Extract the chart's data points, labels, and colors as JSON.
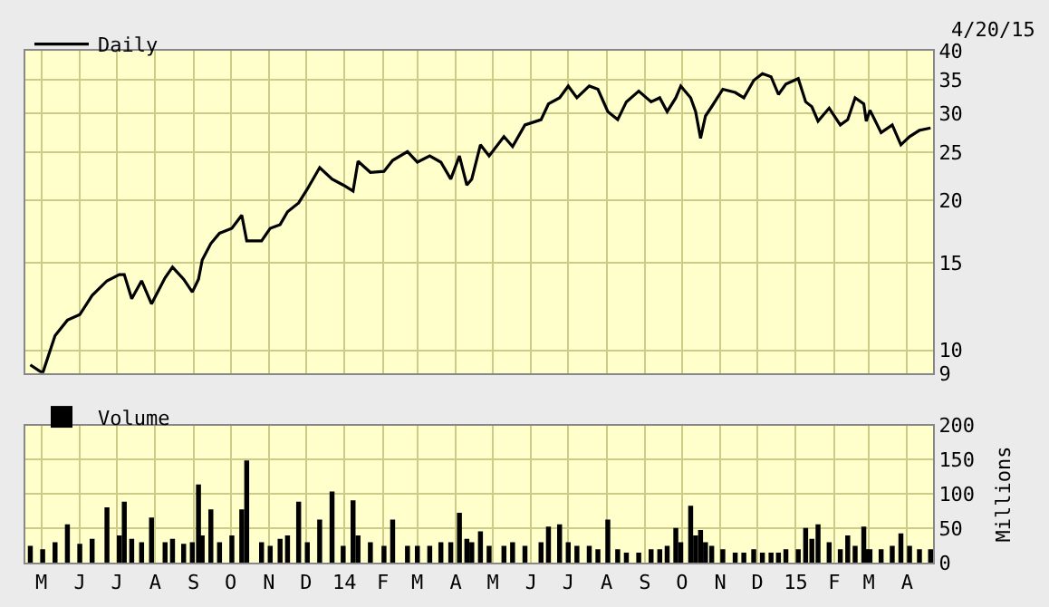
{
  "chart_data": [
    {
      "type": "line",
      "log": "y",
      "grid": true,
      "legend": "top left",
      "marker": "none",
      "line_style": "solid",
      "tick_labels": "y",
      "annotations": [
        "4/20/15"
      ],
      "xlim": [
        "2013-04-18",
        "2015-04-22"
      ],
      "xticks": [
        {
          "value": "2013-05-01",
          "label": null
        },
        {
          "value": "2013-06-01",
          "label": null
        },
        {
          "value": "2013-07-01",
          "label": null
        },
        {
          "value": "2013-08-01",
          "label": null
        },
        {
          "value": "2013-09-01",
          "label": null
        },
        {
          "value": "2013-10-01",
          "label": null
        },
        {
          "value": "2013-11-01",
          "label": null
        },
        {
          "value": "2013-12-01",
          "label": null
        },
        {
          "value": "2014-01-01",
          "label": null
        },
        {
          "value": "2014-02-01",
          "label": null
        },
        {
          "value": "2014-03-01",
          "label": null
        },
        {
          "value": "2014-04-01",
          "label": null
        },
        {
          "value": "2014-05-01",
          "label": null
        },
        {
          "value": "2014-06-01",
          "label": null
        },
        {
          "value": "2014-07-01",
          "label": null
        },
        {
          "value": "2014-08-01",
          "label": null
        },
        {
          "value": "2014-09-01",
          "label": null
        },
        {
          "value": "2014-10-01",
          "label": null
        },
        {
          "value": "2014-11-01",
          "label": null
        },
        {
          "value": "2014-12-01",
          "label": null
        },
        {
          "value": "2015-01-01",
          "label": null
        },
        {
          "value": "2015-02-01",
          "label": null
        },
        {
          "value": "2015-03-01",
          "label": null
        },
        {
          "value": "2015-04-01",
          "label": null
        }
      ],
      "ylim": [
        9,
        40
      ],
      "yticks": [
        9,
        10,
        15,
        20,
        25,
        30,
        35,
        40
      ],
      "x": [
        "2013-04-22",
        "2013-05-02",
        "2013-05-12",
        "2013-05-22",
        "2013-06-01",
        "2013-06-11",
        "2013-06-23",
        "2013-07-03",
        "2013-07-07",
        "2013-07-13",
        "2013-07-21",
        "2013-07-29",
        "2013-08-09",
        "2013-08-15",
        "2013-08-24",
        "2013-08-31",
        "2013-09-05",
        "2013-09-08",
        "2013-09-15",
        "2013-09-22",
        "2013-10-02",
        "2013-10-10",
        "2013-10-14",
        "2013-10-26",
        "2013-11-02",
        "2013-11-10",
        "2013-11-16",
        "2013-11-25",
        "2013-12-02",
        "2013-12-12",
        "2013-12-22",
        "2013-12-31",
        "2014-01-08",
        "2014-01-12",
        "2014-01-22",
        "2014-02-02",
        "2014-02-09",
        "2014-02-21",
        "2014-03-01",
        "2014-03-11",
        "2014-03-20",
        "2014-03-28",
        "2014-04-04",
        "2014-04-10",
        "2014-04-14",
        "2014-04-21",
        "2014-04-28",
        "2014-05-10",
        "2014-05-17",
        "2014-05-27",
        "2014-06-09",
        "2014-06-15",
        "2014-06-24",
        "2014-07-01",
        "2014-07-08",
        "2014-07-18",
        "2014-07-25",
        "2014-08-02",
        "2014-08-10",
        "2014-08-17",
        "2014-08-27",
        "2014-09-06",
        "2014-09-13",
        "2014-09-19",
        "2014-09-26",
        "2014-09-30",
        "2014-10-08",
        "2014-10-12",
        "2014-10-16",
        "2014-10-20",
        "2014-10-25",
        "2014-11-03",
        "2014-11-13",
        "2014-11-20",
        "2014-11-28",
        "2014-12-05",
        "2014-12-12",
        "2014-12-18",
        "2014-12-24",
        "2015-01-03",
        "2015-01-09",
        "2015-01-14",
        "2015-01-19",
        "2015-01-28",
        "2015-02-06",
        "2015-02-12",
        "2015-02-18",
        "2015-02-25",
        "2015-02-27",
        "2015-03-02",
        "2015-03-11",
        "2015-03-20",
        "2015-03-27",
        "2015-04-03",
        "2015-04-11",
        "2015-04-20"
      ],
      "series": [
        {
          "name": "Daily",
          "color": "#000000",
          "values": [
            9.35,
            9.0,
            10.7,
            11.5,
            11.8,
            12.9,
            13.8,
            14.2,
            14.2,
            12.7,
            13.8,
            12.4,
            14.0,
            14.7,
            13.9,
            13.1,
            13.9,
            15.2,
            16.4,
            17.2,
            17.6,
            18.7,
            16.6,
            16.6,
            17.6,
            17.9,
            19.0,
            19.8,
            21.1,
            23.3,
            22.1,
            21.5,
            20.9,
            24.0,
            22.8,
            22.9,
            24.1,
            25.1,
            23.9,
            24.6,
            23.9,
            22.1,
            24.6,
            21.5,
            22.1,
            25.9,
            24.6,
            26.9,
            25.7,
            28.4,
            29.1,
            31.3,
            32.2,
            34.0,
            32.2,
            34.0,
            33.5,
            30.2,
            29.1,
            31.6,
            33.2,
            31.6,
            32.2,
            30.2,
            32.2,
            34.0,
            32.2,
            30.2,
            26.7,
            29.6,
            30.9,
            33.5,
            33.0,
            32.2,
            34.9,
            36.0,
            35.5,
            32.7,
            34.3,
            35.2,
            31.6,
            30.9,
            28.9,
            30.7,
            28.4,
            29.1,
            32.2,
            31.3,
            28.9,
            30.4,
            27.4,
            28.4,
            25.9,
            26.9,
            27.7,
            28.0
          ]
        }
      ]
    },
    {
      "type": "bar",
      "grid": true,
      "legend": "top left",
      "ylabel": "Millions",
      "xlim": [
        "2013-04-18",
        "2015-04-22"
      ],
      "xticks": [
        {
          "value": "2013-05-01",
          "label": "M"
        },
        {
          "value": "2013-06-01",
          "label": "J"
        },
        {
          "value": "2013-07-01",
          "label": "J"
        },
        {
          "value": "2013-08-01",
          "label": "A"
        },
        {
          "value": "2013-09-01",
          "label": "S"
        },
        {
          "value": "2013-10-01",
          "label": "O"
        },
        {
          "value": "2013-11-01",
          "label": "N"
        },
        {
          "value": "2013-12-01",
          "label": "D"
        },
        {
          "value": "2014-01-01",
          "label": "14"
        },
        {
          "value": "2014-02-01",
          "label": "F"
        },
        {
          "value": "2014-03-01",
          "label": "M"
        },
        {
          "value": "2014-04-01",
          "label": "A"
        },
        {
          "value": "2014-05-01",
          "label": "M"
        },
        {
          "value": "2014-06-01",
          "label": "J"
        },
        {
          "value": "2014-07-01",
          "label": "J"
        },
        {
          "value": "2014-08-01",
          "label": "A"
        },
        {
          "value": "2014-09-01",
          "label": "S"
        },
        {
          "value": "2014-10-01",
          "label": "O"
        },
        {
          "value": "2014-11-01",
          "label": "N"
        },
        {
          "value": "2014-12-01",
          "label": "D"
        },
        {
          "value": "2015-01-01",
          "label": "15"
        },
        {
          "value": "2015-02-01",
          "label": "F"
        },
        {
          "value": "2015-03-01",
          "label": "M"
        },
        {
          "value": "2015-04-01",
          "label": "A"
        }
      ],
      "ylim": [
        0,
        200
      ],
      "yticks": [
        0,
        50,
        100,
        150,
        200
      ],
      "x": [
        "2013-04-22",
        "2013-05-02",
        "2013-05-12",
        "2013-05-22",
        "2013-06-01",
        "2013-06-11",
        "2013-06-23",
        "2013-07-03",
        "2013-07-07",
        "2013-07-13",
        "2013-07-21",
        "2013-07-29",
        "2013-08-09",
        "2013-08-15",
        "2013-08-24",
        "2013-08-31",
        "2013-09-05",
        "2013-09-08",
        "2013-09-15",
        "2013-09-22",
        "2013-10-02",
        "2013-10-10",
        "2013-10-14",
        "2013-10-26",
        "2013-11-02",
        "2013-11-10",
        "2013-11-16",
        "2013-11-25",
        "2013-12-02",
        "2013-12-12",
        "2013-12-22",
        "2013-12-31",
        "2014-01-08",
        "2014-01-12",
        "2014-01-22",
        "2014-02-02",
        "2014-02-09",
        "2014-02-21",
        "2014-03-01",
        "2014-03-11",
        "2014-03-20",
        "2014-03-28",
        "2014-04-04",
        "2014-04-10",
        "2014-04-14",
        "2014-04-21",
        "2014-04-28",
        "2014-05-10",
        "2014-05-17",
        "2014-05-27",
        "2014-06-09",
        "2014-06-15",
        "2014-06-24",
        "2014-07-01",
        "2014-07-08",
        "2014-07-18",
        "2014-07-25",
        "2014-08-02",
        "2014-08-10",
        "2014-08-17",
        "2014-08-27",
        "2014-09-06",
        "2014-09-13",
        "2014-09-19",
        "2014-09-26",
        "2014-09-30",
        "2014-10-08",
        "2014-10-12",
        "2014-10-16",
        "2014-10-20",
        "2014-10-25",
        "2014-11-03",
        "2014-11-13",
        "2014-11-20",
        "2014-11-28",
        "2014-12-05",
        "2014-12-12",
        "2014-12-18",
        "2014-12-24",
        "2015-01-03",
        "2015-01-09",
        "2015-01-14",
        "2015-01-19",
        "2015-01-28",
        "2015-02-06",
        "2015-02-12",
        "2015-02-18",
        "2015-02-25",
        "2015-02-27",
        "2015-03-02",
        "2015-03-11",
        "2015-03-20",
        "2015-03-27",
        "2015-04-03",
        "2015-04-11",
        "2015-04-20"
      ],
      "series": [
        {
          "name": "Volume",
          "color": "#000000",
          "values": [
            25,
            20,
            30,
            56,
            28,
            35,
            81,
            40,
            89,
            35,
            30,
            66,
            30,
            35,
            28,
            30,
            114,
            40,
            78,
            30,
            40,
            78,
            149,
            30,
            25,
            35,
            40,
            89,
            30,
            63,
            104,
            25,
            91,
            40,
            30,
            25,
            63,
            25,
            25,
            25,
            30,
            30,
            73,
            35,
            30,
            46,
            25,
            25,
            30,
            25,
            30,
            53,
            56,
            30,
            25,
            25,
            20,
            63,
            20,
            15,
            15,
            20,
            20,
            25,
            51,
            30,
            83,
            40,
            48,
            30,
            25,
            20,
            15,
            15,
            20,
            15,
            15,
            15,
            20,
            20,
            51,
            35,
            56,
            30,
            20,
            40,
            25,
            53,
            20,
            20,
            20,
            25,
            43,
            25,
            20,
            20
          ]
        }
      ]
    }
  ]
}
